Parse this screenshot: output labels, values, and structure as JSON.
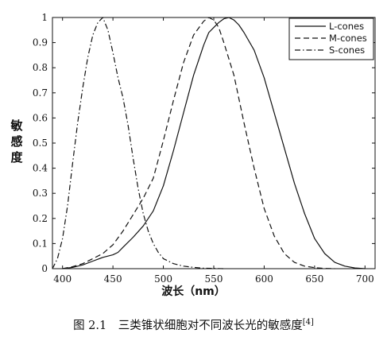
{
  "chart_data": {
    "type": "line",
    "xlim": [
      390,
      710
    ],
    "ylim": [
      0,
      1
    ],
    "x_ticks": [
      400,
      450,
      500,
      550,
      600,
      650,
      700
    ],
    "y_ticks": [
      0,
      0.1,
      0.2,
      0.3,
      0.4,
      0.5,
      0.6,
      0.7,
      0.8,
      0.9,
      1
    ],
    "ylabel_chars": [
      "敏",
      "感",
      "度"
    ],
    "xlabel": "波长（nm）",
    "legend_position": "top-right",
    "grid": false,
    "series": [
      {
        "name": "L-cones",
        "style": "solid",
        "x": [
          400,
          410,
          420,
          430,
          440,
          450,
          455,
          460,
          470,
          480,
          490,
          500,
          510,
          520,
          530,
          540,
          545,
          550,
          555,
          560,
          565,
          570,
          575,
          580,
          590,
          600,
          610,
          620,
          630,
          640,
          650,
          660,
          670,
          680,
          690,
          700
        ],
        "y": [
          0.0,
          0.005,
          0.015,
          0.03,
          0.045,
          0.055,
          0.065,
          0.085,
          0.125,
          0.17,
          0.23,
          0.33,
          0.47,
          0.62,
          0.77,
          0.89,
          0.94,
          0.96,
          0.98,
          0.995,
          1.0,
          0.99,
          0.97,
          0.94,
          0.87,
          0.76,
          0.62,
          0.48,
          0.34,
          0.22,
          0.12,
          0.06,
          0.025,
          0.01,
          0.003,
          0.0
        ]
      },
      {
        "name": "M-cones",
        "style": "dashed",
        "x": [
          400,
          410,
          420,
          430,
          440,
          450,
          460,
          470,
          480,
          490,
          500,
          510,
          520,
          530,
          540,
          545,
          550,
          555,
          560,
          570,
          580,
          590,
          600,
          610,
          620,
          630,
          640,
          650,
          660,
          670
        ],
        "y": [
          0.0,
          0.008,
          0.02,
          0.04,
          0.06,
          0.095,
          0.15,
          0.215,
          0.28,
          0.36,
          0.51,
          0.67,
          0.82,
          0.93,
          0.985,
          1.0,
          0.99,
          0.96,
          0.9,
          0.77,
          0.58,
          0.4,
          0.24,
          0.13,
          0.06,
          0.025,
          0.01,
          0.004,
          0.001,
          0.0
        ]
      },
      {
        "name": "S-cones",
        "style": "dashdot",
        "x": [
          390,
          395,
          400,
          405,
          410,
          415,
          420,
          425,
          430,
          435,
          440,
          445,
          450,
          455,
          460,
          465,
          470,
          475,
          480,
          485,
          490,
          495,
          500,
          510,
          520,
          530,
          540,
          550,
          560
        ],
        "y": [
          0.0,
          0.04,
          0.12,
          0.25,
          0.42,
          0.58,
          0.72,
          0.84,
          0.93,
          0.98,
          1.0,
          0.95,
          0.86,
          0.76,
          0.68,
          0.57,
          0.44,
          0.32,
          0.22,
          0.15,
          0.1,
          0.065,
          0.04,
          0.02,
          0.01,
          0.005,
          0.002,
          0.001,
          0.0
        ]
      }
    ]
  },
  "caption": {
    "text": "图 2.1　三类锥状细胞对不同波长光的敏感度",
    "superscript": "[4]"
  }
}
